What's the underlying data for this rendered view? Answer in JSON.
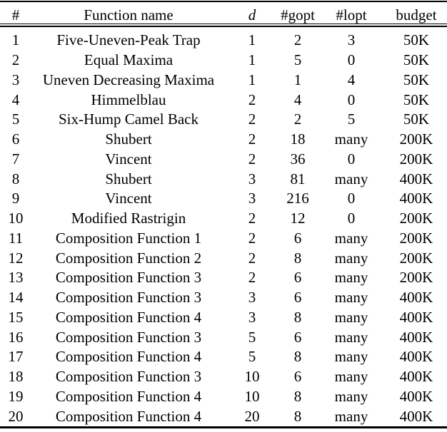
{
  "table": {
    "columns": [
      {
        "key": "num",
        "label": "#"
      },
      {
        "key": "name",
        "label": "Function name"
      },
      {
        "key": "d",
        "label": "d"
      },
      {
        "key": "gopt",
        "label": "#gopt"
      },
      {
        "key": "lopt",
        "label": "#lopt"
      },
      {
        "key": "budget",
        "label": "budget"
      }
    ],
    "rows": [
      [
        "1",
        "Five-Uneven-Peak Trap",
        "1",
        "2",
        "3",
        "50K"
      ],
      [
        "2",
        "Equal Maxima",
        "1",
        "5",
        "0",
        "50K"
      ],
      [
        "3",
        "Uneven Decreasing Maxima",
        "1",
        "1",
        "4",
        "50K"
      ],
      [
        "4",
        "Himmelblau",
        "2",
        "4",
        "0",
        "50K"
      ],
      [
        "5",
        "Six-Hump Camel Back",
        "2",
        "2",
        "5",
        "50K"
      ],
      [
        "6",
        "Shubert",
        "2",
        "18",
        "many",
        "200K"
      ],
      [
        "7",
        "Vincent",
        "2",
        "36",
        "0",
        "200K"
      ],
      [
        "8",
        "Shubert",
        "3",
        "81",
        "many",
        "400K"
      ],
      [
        "9",
        "Vincent",
        "3",
        "216",
        "0",
        "400K"
      ],
      [
        "10",
        "Modified Rastrigin",
        "2",
        "12",
        "0",
        "200K"
      ],
      [
        "11",
        "Composition Function 1",
        "2",
        "6",
        "many",
        "200K"
      ],
      [
        "12",
        "Composition Function 2",
        "2",
        "8",
        "many",
        "200K"
      ],
      [
        "13",
        "Composition Function 3",
        "2",
        "6",
        "many",
        "200K"
      ],
      [
        "14",
        "Composition Function 3",
        "3",
        "6",
        "many",
        "400K"
      ],
      [
        "15",
        "Composition Function 4",
        "3",
        "8",
        "many",
        "400K"
      ],
      [
        "16",
        "Composition Function 3",
        "5",
        "6",
        "many",
        "400K"
      ],
      [
        "17",
        "Composition Function 4",
        "5",
        "8",
        "many",
        "400K"
      ],
      [
        "18",
        "Composition Function 3",
        "10",
        "6",
        "many",
        "400K"
      ],
      [
        "19",
        "Composition Function 4",
        "10",
        "8",
        "many",
        "400K"
      ],
      [
        "20",
        "Composition Function 4",
        "20",
        "8",
        "many",
        "400K"
      ]
    ]
  },
  "colors": {
    "text": "#000000",
    "rule": "#000000",
    "background": "#ffffff"
  }
}
